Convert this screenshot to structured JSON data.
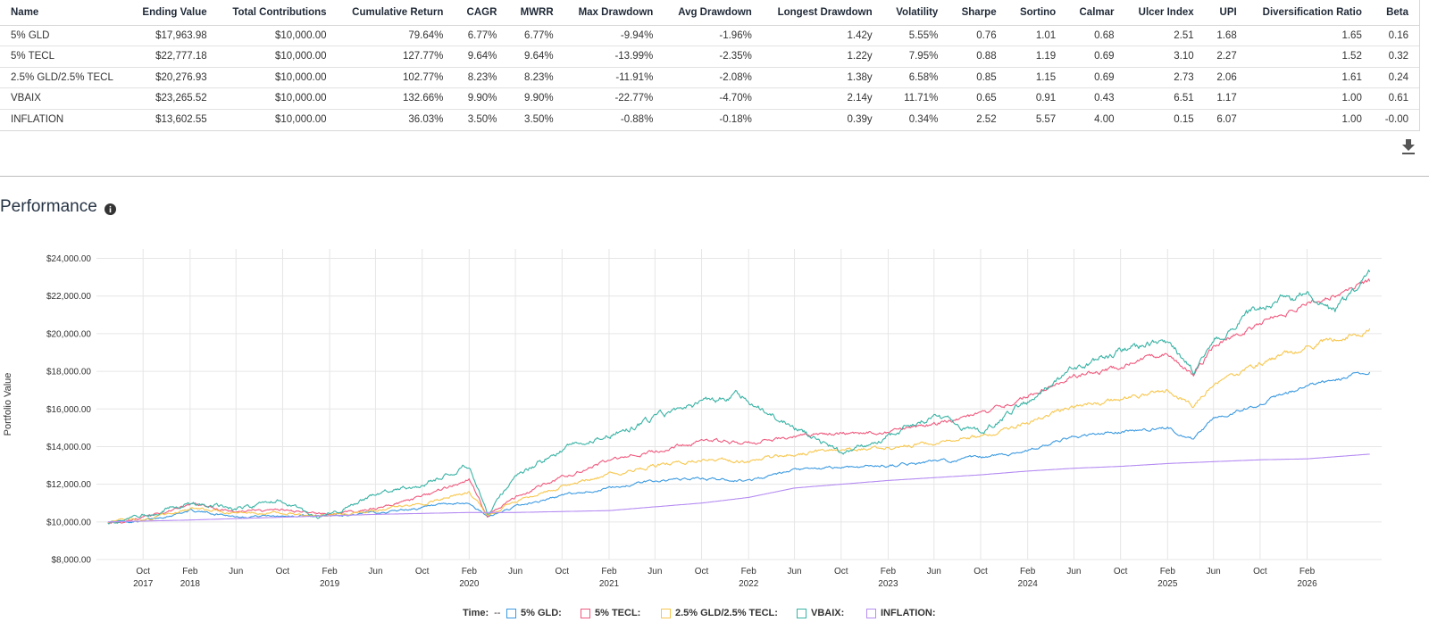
{
  "table": {
    "headers": [
      "Name",
      "Ending Value",
      "Total Contributions",
      "Cumulative Return",
      "CAGR",
      "MWRR",
      "Max Drawdown",
      "Avg Drawdown",
      "Longest Drawdown",
      "Volatility",
      "Sharpe",
      "Sortino",
      "Calmar",
      "Ulcer Index",
      "UPI",
      "Diversification Ratio",
      "Beta"
    ],
    "rows": [
      [
        "5% GLD",
        "$17,963.98",
        "$10,000.00",
        "79.64%",
        "6.77%",
        "6.77%",
        "-9.94%",
        "-1.96%",
        "1.42y",
        "5.55%",
        "0.76",
        "1.01",
        "0.68",
        "2.51",
        "1.68",
        "1.65",
        "0.16"
      ],
      [
        "5% TECL",
        "$22,777.18",
        "$10,000.00",
        "127.77%",
        "9.64%",
        "9.64%",
        "-13.99%",
        "-2.35%",
        "1.22y",
        "7.95%",
        "0.88",
        "1.19",
        "0.69",
        "3.10",
        "2.27",
        "1.52",
        "0.32"
      ],
      [
        "2.5% GLD/2.5% TECL",
        "$20,276.93",
        "$10,000.00",
        "102.77%",
        "8.23%",
        "8.23%",
        "-11.91%",
        "-2.08%",
        "1.38y",
        "6.58%",
        "0.85",
        "1.15",
        "0.69",
        "2.73",
        "2.06",
        "1.61",
        "0.24"
      ],
      [
        "VBAIX",
        "$23,265.52",
        "$10,000.00",
        "132.66%",
        "9.90%",
        "9.90%",
        "-22.77%",
        "-4.70%",
        "2.14y",
        "11.71%",
        "0.65",
        "0.91",
        "0.43",
        "6.51",
        "1.17",
        "1.00",
        "0.61"
      ],
      [
        "INFLATION",
        "$13,602.55",
        "$10,000.00",
        "36.03%",
        "3.50%",
        "3.50%",
        "-0.88%",
        "-0.18%",
        "0.39y",
        "0.34%",
        "2.52",
        "5.57",
        "4.00",
        "0.15",
        "6.07",
        "1.00",
        "-0.00"
      ]
    ]
  },
  "section": {
    "title": "Performance"
  },
  "icons": {
    "download": "download-icon",
    "info": "info-icon"
  },
  "legend": {
    "time_label": "Time:",
    "time_value": "--"
  },
  "chart_data": {
    "type": "line",
    "title": "",
    "xlabel": "",
    "ylabel": "Portfolio Value",
    "ylim": [
      8000,
      24500
    ],
    "y_ticks": [
      "$8,000.00",
      "$10,000.00",
      "$12,000.00",
      "$14,000.00",
      "$16,000.00",
      "$18,000.00",
      "$20,000.00",
      "$22,000.00",
      "$24,000.00"
    ],
    "y_tick_values": [
      8000,
      10000,
      12000,
      14000,
      16000,
      18000,
      20000,
      22000,
      24000
    ],
    "xlim": [
      "2017-06-01",
      "2026-08-15"
    ],
    "x_ticks": [
      {
        "date": "2017-10-01",
        "label": "Oct",
        "year": "2017"
      },
      {
        "date": "2018-02-01",
        "label": "Feb",
        "year": "2018"
      },
      {
        "date": "2018-06-01",
        "label": "Jun",
        "year": ""
      },
      {
        "date": "2018-10-01",
        "label": "Oct",
        "year": ""
      },
      {
        "date": "2019-02-01",
        "label": "Feb",
        "year": "2019"
      },
      {
        "date": "2019-06-01",
        "label": "Jun",
        "year": ""
      },
      {
        "date": "2019-10-01",
        "label": "Oct",
        "year": ""
      },
      {
        "date": "2020-02-01",
        "label": "Feb",
        "year": "2020"
      },
      {
        "date": "2020-06-01",
        "label": "Jun",
        "year": ""
      },
      {
        "date": "2020-10-01",
        "label": "Oct",
        "year": ""
      },
      {
        "date": "2021-02-01",
        "label": "Feb",
        "year": "2021"
      },
      {
        "date": "2021-06-01",
        "label": "Jun",
        "year": ""
      },
      {
        "date": "2021-10-01",
        "label": "Oct",
        "year": ""
      },
      {
        "date": "2022-02-01",
        "label": "Feb",
        "year": "2022"
      },
      {
        "date": "2022-06-01",
        "label": "Jun",
        "year": ""
      },
      {
        "date": "2022-10-01",
        "label": "Oct",
        "year": ""
      },
      {
        "date": "2023-02-01",
        "label": "Feb",
        "year": "2023"
      },
      {
        "date": "2023-06-01",
        "label": "Jun",
        "year": ""
      },
      {
        "date": "2023-10-01",
        "label": "Oct",
        "year": ""
      },
      {
        "date": "2024-02-01",
        "label": "Feb",
        "year": "2024"
      },
      {
        "date": "2024-06-01",
        "label": "Jun",
        "year": ""
      },
      {
        "date": "2024-10-01",
        "label": "Oct",
        "year": ""
      },
      {
        "date": "2025-02-01",
        "label": "Feb",
        "year": "2025"
      },
      {
        "date": "2025-06-01",
        "label": "Jun",
        "year": ""
      },
      {
        "date": "2025-10-01",
        "label": "Oct",
        "year": ""
      },
      {
        "date": "2026-02-01",
        "label": "Feb",
        "year": "2026"
      }
    ],
    "grid": true,
    "legend_position": "bottom",
    "series": [
      {
        "name": "5% GLD",
        "color": "#3b9ae1",
        "points": [
          [
            "2017-07-01",
            10000
          ],
          [
            "2017-10-01",
            10050
          ],
          [
            "2018-02-01",
            10600
          ],
          [
            "2018-06-01",
            10300
          ],
          [
            "2018-10-01",
            10350
          ],
          [
            "2019-02-01",
            10300
          ],
          [
            "2019-06-01",
            10500
          ],
          [
            "2019-10-01",
            10750
          ],
          [
            "2020-02-01",
            11000
          ],
          [
            "2020-03-20",
            10250
          ],
          [
            "2020-06-01",
            10800
          ],
          [
            "2020-10-01",
            11400
          ],
          [
            "2021-02-01",
            11800
          ],
          [
            "2021-06-01",
            12200
          ],
          [
            "2021-10-01",
            12300
          ],
          [
            "2022-02-01",
            12200
          ],
          [
            "2022-06-01",
            12700
          ],
          [
            "2022-10-01",
            12900
          ],
          [
            "2023-02-01",
            13000
          ],
          [
            "2023-06-01",
            13200
          ],
          [
            "2023-10-01",
            13400
          ],
          [
            "2024-02-01",
            13800
          ],
          [
            "2024-06-01",
            14500
          ],
          [
            "2024-10-01",
            14800
          ],
          [
            "2025-02-01",
            15000
          ],
          [
            "2025-04-10",
            14400
          ],
          [
            "2025-06-01",
            15500
          ],
          [
            "2025-10-01",
            16300
          ],
          [
            "2026-02-01",
            17200
          ],
          [
            "2026-07-15",
            17960
          ]
        ]
      },
      {
        "name": "5% TECL",
        "color": "#f05a7e",
        "points": [
          [
            "2017-07-01",
            10000
          ],
          [
            "2017-10-01",
            10200
          ],
          [
            "2018-02-01",
            10900
          ],
          [
            "2018-06-01",
            10550
          ],
          [
            "2018-10-01",
            10600
          ],
          [
            "2019-02-01",
            10400
          ],
          [
            "2019-06-01",
            10750
          ],
          [
            "2019-10-01",
            11300
          ],
          [
            "2020-02-01",
            12200
          ],
          [
            "2020-03-20",
            10300
          ],
          [
            "2020-06-01",
            11300
          ],
          [
            "2020-10-01",
            12400
          ],
          [
            "2021-02-01",
            13200
          ],
          [
            "2021-06-01",
            13800
          ],
          [
            "2021-10-01",
            14300
          ],
          [
            "2022-02-01",
            14200
          ],
          [
            "2022-06-01",
            14500
          ],
          [
            "2022-10-01",
            14700
          ],
          [
            "2023-02-01",
            14800
          ],
          [
            "2023-06-01",
            15200
          ],
          [
            "2023-10-01",
            15700
          ],
          [
            "2024-02-01",
            16700
          ],
          [
            "2024-06-01",
            17800
          ],
          [
            "2024-10-01",
            18200
          ],
          [
            "2025-02-01",
            19000
          ],
          [
            "2025-04-10",
            17800
          ],
          [
            "2025-06-01",
            19300
          ],
          [
            "2025-10-01",
            20500
          ],
          [
            "2026-02-01",
            21600
          ],
          [
            "2026-07-15",
            22780
          ]
        ]
      },
      {
        "name": "2.5% GLD/2.5% TECL",
        "color": "#f8c74e",
        "points": [
          [
            "2017-07-01",
            10000
          ],
          [
            "2017-10-01",
            10100
          ],
          [
            "2018-02-01",
            10750
          ],
          [
            "2018-06-01",
            10450
          ],
          [
            "2018-10-01",
            10450
          ],
          [
            "2019-02-01",
            10350
          ],
          [
            "2019-06-01",
            10600
          ],
          [
            "2019-10-01",
            11000
          ],
          [
            "2020-02-01",
            11600
          ],
          [
            "2020-03-20",
            10300
          ],
          [
            "2020-06-01",
            11100
          ],
          [
            "2020-10-01",
            11900
          ],
          [
            "2021-02-01",
            12500
          ],
          [
            "2021-06-01",
            13000
          ],
          [
            "2021-10-01",
            13300
          ],
          [
            "2022-02-01",
            13200
          ],
          [
            "2022-06-01",
            13600
          ],
          [
            "2022-10-01",
            13800
          ],
          [
            "2023-02-01",
            13900
          ],
          [
            "2023-06-01",
            14200
          ],
          [
            "2023-10-01",
            14500
          ],
          [
            "2024-02-01",
            15300
          ],
          [
            "2024-06-01",
            16100
          ],
          [
            "2024-10-01",
            16500
          ],
          [
            "2025-02-01",
            17000
          ],
          [
            "2025-04-10",
            16200
          ],
          [
            "2025-06-01",
            17400
          ],
          [
            "2025-10-01",
            18400
          ],
          [
            "2026-02-01",
            19300
          ],
          [
            "2026-07-15",
            20280
          ]
        ]
      },
      {
        "name": "VBAIX",
        "color": "#39b3a5",
        "points": [
          [
            "2017-07-01",
            10000
          ],
          [
            "2017-10-01",
            10350
          ],
          [
            "2018-02-01",
            11050
          ],
          [
            "2018-06-01",
            10700
          ],
          [
            "2018-10-01",
            11100
          ],
          [
            "2019-01-01",
            10100
          ],
          [
            "2019-06-01",
            11500
          ],
          [
            "2019-10-01",
            12000
          ],
          [
            "2020-02-01",
            13000
          ],
          [
            "2020-03-20",
            10400
          ],
          [
            "2020-06-01",
            12500
          ],
          [
            "2020-10-01",
            13800
          ],
          [
            "2021-02-01",
            14600
          ],
          [
            "2021-06-01",
            15500
          ],
          [
            "2021-10-01",
            16300
          ],
          [
            "2022-01-01",
            16800
          ],
          [
            "2022-06-01",
            15000
          ],
          [
            "2022-10-01",
            13700
          ],
          [
            "2023-02-01",
            14600
          ],
          [
            "2023-06-01",
            15600
          ],
          [
            "2023-10-01",
            14800
          ],
          [
            "2024-02-01",
            16400
          ],
          [
            "2024-06-01",
            18100
          ],
          [
            "2024-10-01",
            19100
          ],
          [
            "2025-02-01",
            19700
          ],
          [
            "2025-04-10",
            17900
          ],
          [
            "2025-06-01",
            19800
          ],
          [
            "2025-10-01",
            21400
          ],
          [
            "2026-02-01",
            22200
          ],
          [
            "2026-04-15",
            21200
          ],
          [
            "2026-07-15",
            23270
          ]
        ]
      },
      {
        "name": "INFLATION",
        "color": "#b58cf2",
        "points": [
          [
            "2017-07-01",
            10000
          ],
          [
            "2018-02-01",
            10100
          ],
          [
            "2018-10-01",
            10250
          ],
          [
            "2019-06-01",
            10400
          ],
          [
            "2020-02-01",
            10500
          ],
          [
            "2020-06-01",
            10500
          ],
          [
            "2021-02-01",
            10600
          ],
          [
            "2021-06-01",
            10800
          ],
          [
            "2021-10-01",
            11000
          ],
          [
            "2022-02-01",
            11300
          ],
          [
            "2022-06-01",
            11800
          ],
          [
            "2022-10-01",
            12000
          ],
          [
            "2023-02-01",
            12200
          ],
          [
            "2023-06-01",
            12350
          ],
          [
            "2023-10-01",
            12500
          ],
          [
            "2024-02-01",
            12700
          ],
          [
            "2024-06-01",
            12850
          ],
          [
            "2024-10-01",
            12950
          ],
          [
            "2025-02-01",
            13100
          ],
          [
            "2025-06-01",
            13200
          ],
          [
            "2025-10-01",
            13300
          ],
          [
            "2026-02-01",
            13350
          ],
          [
            "2026-07-15",
            13600
          ]
        ]
      }
    ]
  }
}
